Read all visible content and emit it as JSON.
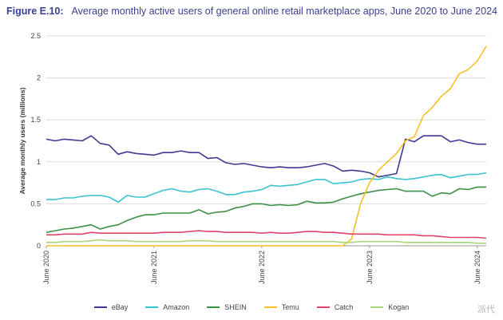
{
  "header": {
    "figure_number": "Figure E.10:",
    "title": "Average monthly active users of general online retail marketplace apps, June 2020 to June 2024"
  },
  "watermark": "派代",
  "chart_data": {
    "type": "line",
    "ylabel": "Average monthly users (millions)",
    "ylim": [
      0,
      2.5
    ],
    "y_ticks": [
      "0",
      "0.5",
      "1",
      "1.5",
      "2",
      "2.5"
    ],
    "x_ticks": [
      "June 2020",
      "June 2021",
      "June 2022",
      "June 2023",
      "June 2024"
    ],
    "x_tick_months": [
      0,
      12,
      24,
      36,
      48
    ],
    "grid": true,
    "legend_position": "bottom",
    "series": [
      {
        "name": "eBay",
        "color": "#3f3a92",
        "values": [
          1.27,
          1.25,
          1.27,
          1.26,
          1.25,
          1.31,
          1.22,
          1.2,
          1.09,
          1.12,
          1.1,
          1.09,
          1.08,
          1.11,
          1.11,
          1.13,
          1.11,
          1.11,
          1.04,
          1.05,
          0.99,
          0.97,
          0.98,
          0.96,
          0.94,
          0.93,
          0.94,
          0.93,
          0.93,
          0.94,
          0.96,
          0.98,
          0.95,
          0.89,
          0.9,
          0.89,
          0.87,
          0.82,
          0.84,
          0.86,
          1.27,
          1.24,
          1.31,
          1.31,
          1.31,
          1.24,
          1.26,
          1.23,
          1.21,
          1.21
        ]
      },
      {
        "name": "Amazon",
        "color": "#3cc3d3",
        "values": [
          0.55,
          0.55,
          0.57,
          0.57,
          0.59,
          0.6,
          0.6,
          0.58,
          0.52,
          0.6,
          0.58,
          0.58,
          0.62,
          0.66,
          0.68,
          0.65,
          0.64,
          0.67,
          0.68,
          0.65,
          0.61,
          0.61,
          0.64,
          0.65,
          0.67,
          0.72,
          0.71,
          0.72,
          0.73,
          0.76,
          0.79,
          0.79,
          0.74,
          0.75,
          0.76,
          0.79,
          0.8,
          0.79,
          0.82,
          0.8,
          0.79,
          0.8,
          0.82,
          0.84,
          0.85,
          0.81,
          0.83,
          0.85,
          0.85,
          0.87
        ]
      },
      {
        "name": "SHEIN",
        "color": "#3d8f47",
        "values": [
          0.16,
          0.18,
          0.2,
          0.21,
          0.23,
          0.25,
          0.2,
          0.23,
          0.25,
          0.3,
          0.34,
          0.37,
          0.37,
          0.39,
          0.39,
          0.39,
          0.39,
          0.43,
          0.38,
          0.4,
          0.41,
          0.45,
          0.47,
          0.5,
          0.5,
          0.48,
          0.49,
          0.48,
          0.49,
          0.53,
          0.51,
          0.51,
          0.52,
          0.56,
          0.59,
          0.62,
          0.64,
          0.66,
          0.67,
          0.68,
          0.65,
          0.65,
          0.65,
          0.59,
          0.63,
          0.62,
          0.68,
          0.67,
          0.7,
          0.7
        ]
      },
      {
        "name": "Temu",
        "color": "#f3c126",
        "values": [
          0,
          0,
          0,
          0,
          0,
          0,
          0,
          0,
          0,
          0,
          0,
          0,
          0,
          0,
          0,
          0,
          0,
          0,
          0,
          0,
          0,
          0,
          0,
          0,
          0,
          0,
          0,
          0,
          0,
          0,
          0,
          0,
          0,
          0,
          0.08,
          0.5,
          0.75,
          0.9,
          1.0,
          1.1,
          1.25,
          1.3,
          1.55,
          1.65,
          1.78,
          1.87,
          2.05,
          2.1,
          2.2,
          2.38
        ]
      },
      {
        "name": "Catch",
        "color": "#e0446b",
        "values": [
          0.13,
          0.13,
          0.14,
          0.14,
          0.14,
          0.16,
          0.15,
          0.15,
          0.15,
          0.15,
          0.15,
          0.15,
          0.15,
          0.16,
          0.16,
          0.16,
          0.17,
          0.18,
          0.17,
          0.17,
          0.16,
          0.16,
          0.16,
          0.16,
          0.15,
          0.16,
          0.15,
          0.15,
          0.16,
          0.17,
          0.17,
          0.16,
          0.16,
          0.15,
          0.14,
          0.14,
          0.14,
          0.14,
          0.13,
          0.13,
          0.13,
          0.13,
          0.12,
          0.12,
          0.11,
          0.1,
          0.1,
          0.1,
          0.1,
          0.09
        ]
      },
      {
        "name": "Kogan",
        "color": "#a7d67a",
        "values": [
          0.04,
          0.04,
          0.05,
          0.05,
          0.05,
          0.06,
          0.07,
          0.06,
          0.06,
          0.06,
          0.05,
          0.05,
          0.05,
          0.05,
          0.05,
          0.05,
          0.06,
          0.06,
          0.06,
          0.05,
          0.05,
          0.05,
          0.05,
          0.05,
          0.05,
          0.05,
          0.05,
          0.05,
          0.05,
          0.05,
          0.05,
          0.05,
          0.05,
          0.04,
          0.04,
          0.05,
          0.05,
          0.05,
          0.05,
          0.05,
          0.04,
          0.04,
          0.04,
          0.04,
          0.04,
          0.04,
          0.04,
          0.04,
          0.03,
          0.03
        ]
      }
    ]
  }
}
